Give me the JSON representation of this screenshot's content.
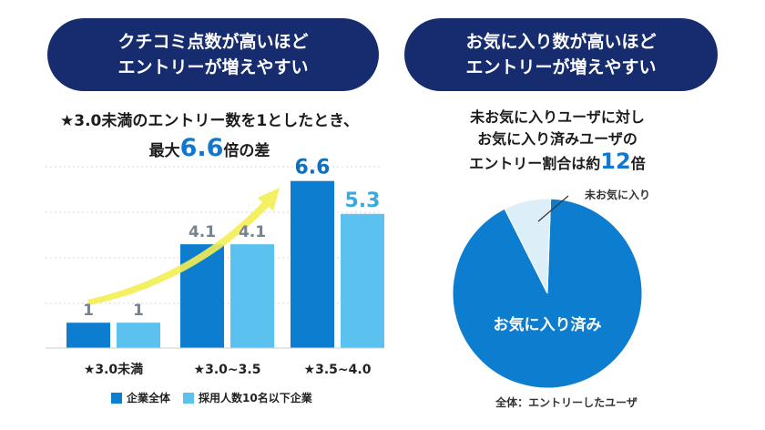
{
  "banners": {
    "left": {
      "line1": "クチコミ点数が高いほど",
      "line2": "エントリーが増えやすい"
    },
    "right": {
      "line1": "お気に入り数が高いほど",
      "line2": "エントリーが増えやすい"
    }
  },
  "left_heading": {
    "line1": "★3.0未満のエントリー数を1としたとき、",
    "line2_pre": "最大",
    "line2_value": "6.6",
    "line2_post": "倍の差"
  },
  "right_heading": {
    "line1": "未お気に入りユーザに対し",
    "line2": "お気に入り済みユーザの",
    "line3_pre": "エントリー割合は約",
    "line3_value": "12",
    "line3_post": "倍"
  },
  "colors": {
    "navy": "#172c6f",
    "series1": "#0d7dd0",
    "series2": "#5bc1ef",
    "arrow": "#f4ee52",
    "pie_main": "#0d7dd0",
    "pie_minor": "#dceff9",
    "label1": "#0d6fbe",
    "label2": "#3aa9e0",
    "label_grey": "#78838f"
  },
  "chart_data": [
    {
      "type": "bar",
      "categories": [
        "★3.0未満",
        "★3.0~3.5",
        "★3.5~4.0"
      ],
      "series": [
        {
          "name": "企業全体",
          "values": [
            1,
            4.1,
            6.6
          ],
          "labels": [
            "1",
            "4.1",
            "6.6"
          ]
        },
        {
          "name": "採用人数10名以下企業",
          "values": [
            1,
            4.1,
            5.3
          ],
          "labels": [
            "1",
            "4.1",
            "5.3"
          ]
        }
      ],
      "ylim": [
        0,
        7.2
      ],
      "grid": true,
      "legend": "bottom",
      "title": "★3.0未満のエントリー数を1としたとき、最大6.6倍の差",
      "annotation": "rising trend arrow"
    },
    {
      "type": "pie",
      "slices": [
        {
          "label": "お気に入り済み",
          "value": 92
        },
        {
          "label": "未お気に入り",
          "value": 8
        }
      ],
      "caption": "全体：エントリーしたユーザ",
      "title": "未お気に入りユーザに対しお気に入り済みユーザのエントリー割合は約12倍"
    }
  ]
}
